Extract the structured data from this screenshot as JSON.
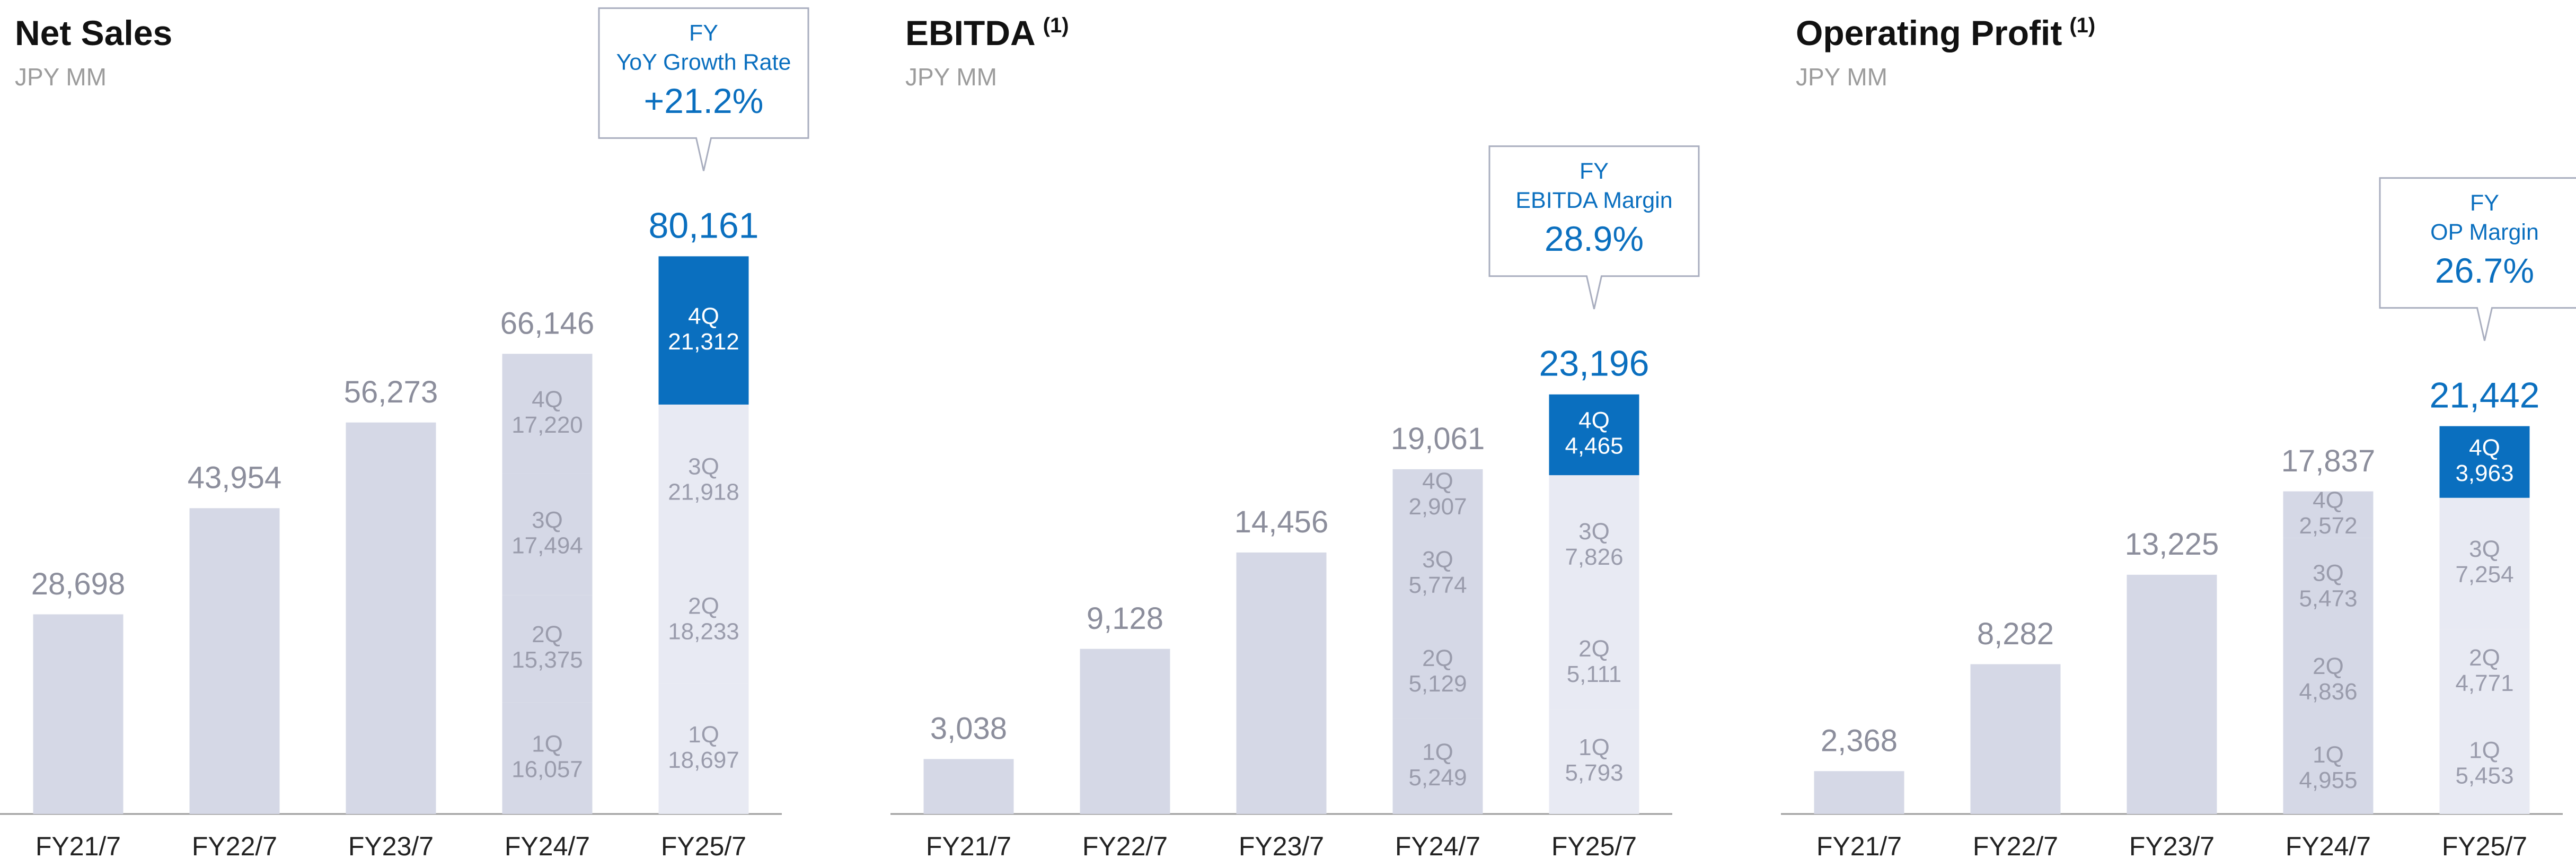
{
  "chart_data": [
    {
      "type": "bar",
      "stacked": true,
      "title": "Net Sales",
      "subtitle": "JPY MM",
      "categories": [
        "FY21/7",
        "FY22/7",
        "FY23/7",
        "FY24/7",
        "FY25/7"
      ],
      "bar_color": "#d5d8e6",
      "highlight_color": "#0a6fbf",
      "totals": {
        "values": [
          28698,
          43954,
          56273,
          66146,
          80161
        ],
        "value_labels": [
          "28,698",
          "43,954",
          "56,273",
          "66,146",
          "80,161"
        ],
        "colors": [
          "#8c8e9c",
          "#8c8e9c",
          "#8c8e9c",
          "#8c8e9c",
          "#0a6fbf"
        ]
      },
      "series": [
        {
          "name": "1Q",
          "values": [
            null,
            null,
            null,
            16057,
            18697
          ],
          "value_labels": [
            null,
            null,
            null,
            "16,057",
            "18,697"
          ],
          "colors": [
            null,
            null,
            null,
            "#d5d8e6",
            "#e8eaf3"
          ]
        },
        {
          "name": "2Q",
          "values": [
            null,
            null,
            null,
            15375,
            18233
          ],
          "value_labels": [
            null,
            null,
            null,
            "15,375",
            "18,233"
          ],
          "colors": [
            null,
            null,
            null,
            "#d5d8e6",
            "#e8eaf3"
          ]
        },
        {
          "name": "3Q",
          "values": [
            null,
            null,
            null,
            17494,
            21918
          ],
          "value_labels": [
            null,
            null,
            null,
            "17,494",
            "21,918"
          ],
          "colors": [
            null,
            null,
            null,
            "#d5d8e6",
            "#e8eaf3"
          ]
        },
        {
          "name": "4Q",
          "values": [
            null,
            null,
            null,
            17220,
            21312
          ],
          "value_labels": [
            null,
            null,
            null,
            "17,220",
            "21,312"
          ],
          "colors": [
            null,
            null,
            null,
            "#d5d8e6",
            "#0a6fbf"
          ]
        }
      ],
      "ylim": [
        0,
        117000
      ],
      "callout": {
        "lines": [
          "FY",
          "YoY Growth Rate"
        ],
        "value": 21.2,
        "value_label": "+21.2%"
      }
    },
    {
      "type": "bar",
      "stacked": true,
      "title": "EBITDA",
      "title_note": "(1)",
      "subtitle": "JPY MM",
      "categories": [
        "FY21/7",
        "FY22/7",
        "FY23/7",
        "FY24/7",
        "FY25/7"
      ],
      "bar_color": "#d5d8e6",
      "highlight_color": "#0a6fbf",
      "totals": {
        "values": [
          3038,
          9128,
          14456,
          19061,
          23196
        ],
        "value_labels": [
          "3,038",
          "9,128",
          "14,456",
          "19,061",
          "23,196"
        ],
        "colors": [
          "#8c8e9c",
          "#8c8e9c",
          "#8c8e9c",
          "#8c8e9c",
          "#0a6fbf"
        ]
      },
      "series": [
        {
          "name": "1Q",
          "values": [
            null,
            null,
            null,
            5249,
            5793
          ],
          "value_labels": [
            null,
            null,
            null,
            "5,249",
            "5,793"
          ],
          "colors": [
            null,
            null,
            null,
            "#d5d8e6",
            "#e8eaf3"
          ]
        },
        {
          "name": "2Q",
          "values": [
            null,
            null,
            null,
            5129,
            5111
          ],
          "value_labels": [
            null,
            null,
            null,
            "5,129",
            "5,111"
          ],
          "colors": [
            null,
            null,
            null,
            "#d5d8e6",
            "#e8eaf3"
          ]
        },
        {
          "name": "3Q",
          "values": [
            null,
            null,
            null,
            5774,
            7826
          ],
          "value_labels": [
            null,
            null,
            null,
            "5,774",
            "7,826"
          ],
          "colors": [
            null,
            null,
            null,
            "#d5d8e6",
            "#e8eaf3"
          ]
        },
        {
          "name": "4Q",
          "values": [
            null,
            null,
            null,
            2907,
            4465
          ],
          "value_labels": [
            null,
            null,
            null,
            "2,907",
            "4,465"
          ],
          "colors": [
            null,
            null,
            null,
            "#d5d8e6",
            "#0a6fbf"
          ]
        }
      ],
      "ylim": [
        0,
        45000
      ],
      "callout": {
        "lines": [
          "FY",
          "EBITDA Margin"
        ],
        "value": 28.9,
        "value_label": "28.9%"
      }
    },
    {
      "type": "bar",
      "stacked": true,
      "title": "Operating Profit",
      "title_note": "(1)",
      "subtitle": "JPY MM",
      "categories": [
        "FY21/7",
        "FY22/7",
        "FY23/7",
        "FY24/7",
        "FY25/7"
      ],
      "bar_color": "#d5d8e6",
      "highlight_color": "#0a6fbf",
      "totals": {
        "values": [
          2368,
          8282,
          13225,
          17837,
          21442
        ],
        "value_labels": [
          "2,368",
          "8,282",
          "13,225",
          "17,837",
          "21,442"
        ],
        "colors": [
          "#8c8e9c",
          "#8c8e9c",
          "#8c8e9c",
          "#8c8e9c",
          "#0a6fbf"
        ]
      },
      "series": [
        {
          "name": "1Q",
          "values": [
            null,
            null,
            null,
            4955,
            5453
          ],
          "value_labels": [
            null,
            null,
            null,
            "4,955",
            "5,453"
          ],
          "colors": [
            null,
            null,
            null,
            "#d5d8e6",
            "#e8eaf3"
          ]
        },
        {
          "name": "2Q",
          "values": [
            null,
            null,
            null,
            4836,
            4771
          ],
          "value_labels": [
            null,
            null,
            null,
            "4,836",
            "4,771"
          ],
          "colors": [
            null,
            null,
            null,
            "#d5d8e6",
            "#e8eaf3"
          ]
        },
        {
          "name": "3Q",
          "values": [
            null,
            null,
            null,
            5473,
            7254
          ],
          "value_labels": [
            null,
            null,
            null,
            "5,473",
            "7,254"
          ],
          "colors": [
            null,
            null,
            null,
            "#d5d8e6",
            "#e8eaf3"
          ]
        },
        {
          "name": "4Q",
          "values": [
            null,
            null,
            null,
            2572,
            3963
          ],
          "value_labels": [
            null,
            null,
            null,
            "2,572",
            "3,963"
          ],
          "colors": [
            null,
            null,
            null,
            "#d5d8e6",
            "#0a6fbf"
          ]
        }
      ],
      "ylim": [
        0,
        45000
      ],
      "callout": {
        "lines": [
          "FY",
          "OP Margin"
        ],
        "value": 26.7,
        "value_label": "26.7%"
      }
    }
  ]
}
